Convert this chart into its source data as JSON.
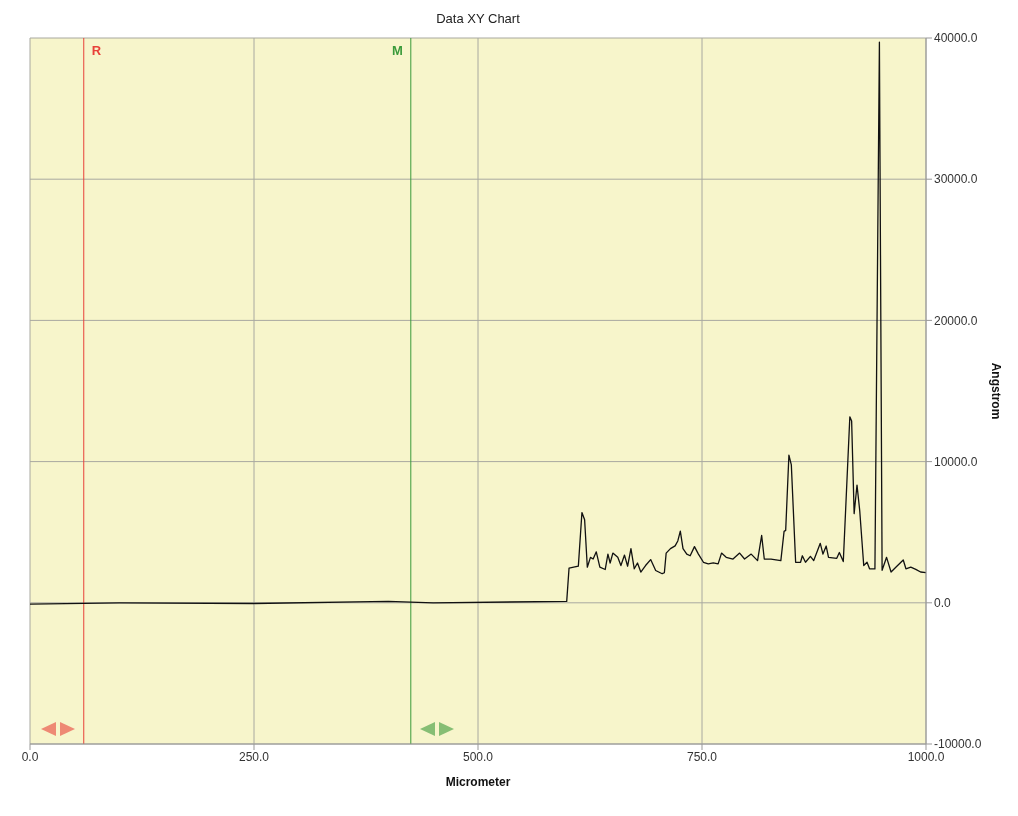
{
  "chart_data": {
    "type": "line",
    "title": "Data XY Chart",
    "xlabel": "Micrometer",
    "ylabel": "Angstrom",
    "xlim": [
      0,
      1000
    ],
    "xticks": [
      {
        "value": 0,
        "label": "0.0"
      },
      {
        "value": 250,
        "label": "250.0"
      },
      {
        "value": 500,
        "label": "500.0"
      },
      {
        "value": 750,
        "label": "750.0"
      },
      {
        "value": 1000,
        "label": "1000.0"
      }
    ],
    "ylim": [
      -10000,
      40000
    ],
    "yticks": [
      {
        "value": -10000,
        "label": "-10000.0"
      },
      {
        "value": 0,
        "label": "0.0"
      },
      {
        "value": 10000,
        "label": "10000.0"
      },
      {
        "value": 20000,
        "label": "20000.0"
      },
      {
        "value": 30000,
        "label": "30000.0"
      },
      {
        "value": 40000,
        "label": "40000.0"
      }
    ],
    "grid": true,
    "ref_lines": [
      {
        "axis": "x",
        "value": 60,
        "label": "R",
        "color": "#e8413a"
      },
      {
        "axis": "x",
        "value": 425,
        "label": "M",
        "color": "#3a9a3a"
      }
    ],
    "series": [
      {
        "color": "#111111",
        "x": [
          0,
          100,
          250,
          400,
          450,
          599,
          601.6,
          612,
          616,
          619,
          622,
          625.5,
          628.5,
          632,
          636,
          642,
          645,
          647.5,
          650.5,
          656,
          659.5,
          663.5,
          667,
          670.7,
          674.4,
          678,
          681.7,
          687,
          692.7,
          698.3,
          705.6,
          708,
          710,
          714.8,
          720,
          723,
          725.8,
          728.8,
          733,
          736.8,
          741.6,
          746,
          751.6,
          757,
          762.6,
          768,
          771.8,
          777,
          784.6,
          792,
          797.5,
          804.9,
          812,
          816.6,
          819.5,
          827,
          838,
          841.6,
          843.4,
          847,
          849.7,
          854.5,
          860,
          862,
          865.5,
          871,
          874.7,
          882,
          885,
          888.6,
          891.2,
          900.4,
          903.3,
          907.7,
          915,
          917,
          919.8,
          923,
          926,
          930.5,
          934.2,
          937,
          943,
          948,
          951,
          956,
          961,
          966.6,
          974.6,
          977.6,
          983,
          988.6,
          994,
          1000
        ],
        "values": [
          -100,
          0,
          -50,
          100,
          0,
          100,
          2450,
          2600,
          6390,
          5880,
          2520,
          3220,
          3100,
          3610,
          2520,
          2360,
          3450,
          2820,
          3520,
          3220,
          2640,
          3380,
          2590,
          3840,
          2410,
          2820,
          2180,
          2640,
          3060,
          2290,
          2060,
          2130,
          3520,
          3840,
          4030,
          4380,
          5070,
          3840,
          3450,
          3330,
          3980,
          3450,
          2870,
          2760,
          2820,
          2760,
          3520,
          3220,
          3100,
          3520,
          3100,
          3450,
          2990,
          4770,
          3100,
          3100,
          2990,
          5060,
          5130,
          10460,
          9770,
          2870,
          2870,
          3330,
          2870,
          3290,
          2990,
          4210,
          3450,
          4020,
          3220,
          3150,
          3560,
          2920,
          13170,
          12870,
          6320,
          8340,
          6550,
          2640,
          2870,
          2410,
          2400,
          39700,
          2300,
          3220,
          2180,
          2530,
          3030,
          2410,
          2530,
          2370,
          2180,
          2140
        ]
      }
    ]
  }
}
